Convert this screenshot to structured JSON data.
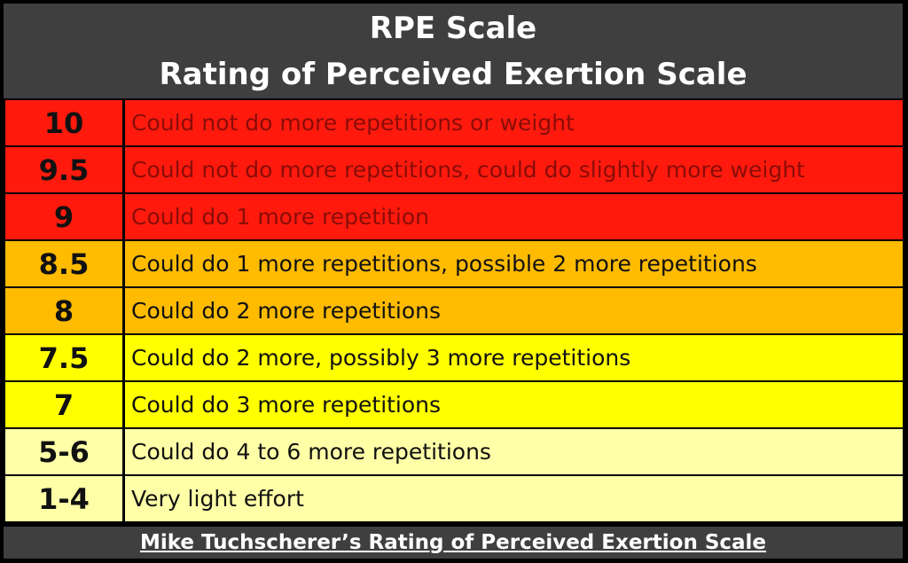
{
  "header": {
    "title": "RPE Scale",
    "subtitle": "Rating of Perceived Exertion Scale"
  },
  "rows": [
    {
      "rating": "10",
      "description": "Could not do more repetitions or weight"
    },
    {
      "rating": "9.5",
      "description": "Could not do more repetitions, could do slightly more weight"
    },
    {
      "rating": "9",
      "description": "Could do 1 more repetition"
    },
    {
      "rating": "8.5",
      "description": "Could do 1 more repetitions, possible 2 more repetitions"
    },
    {
      "rating": "8",
      "description": "Could do 2 more repetitions"
    },
    {
      "rating": "7.5",
      "description": "Could do 2 more, possibly 3 more repetitions"
    },
    {
      "rating": "7",
      "description": "Could do 3 more repetitions"
    },
    {
      "rating": "5-6",
      "description": "Could do 4 to 6 more repetitions"
    },
    {
      "rating": "1-4",
      "description": "Very light effort"
    }
  ],
  "colors": {
    "header_bg": "#3f3f3f",
    "red": "#ff1a0d",
    "orange": "#ffbb00",
    "yellow": "#ffff00",
    "pale_yellow": "#ffffa8"
  },
  "footer": {
    "caption": "Mike Tuchscherer’s Rating of Perceived Exertion Scale"
  }
}
